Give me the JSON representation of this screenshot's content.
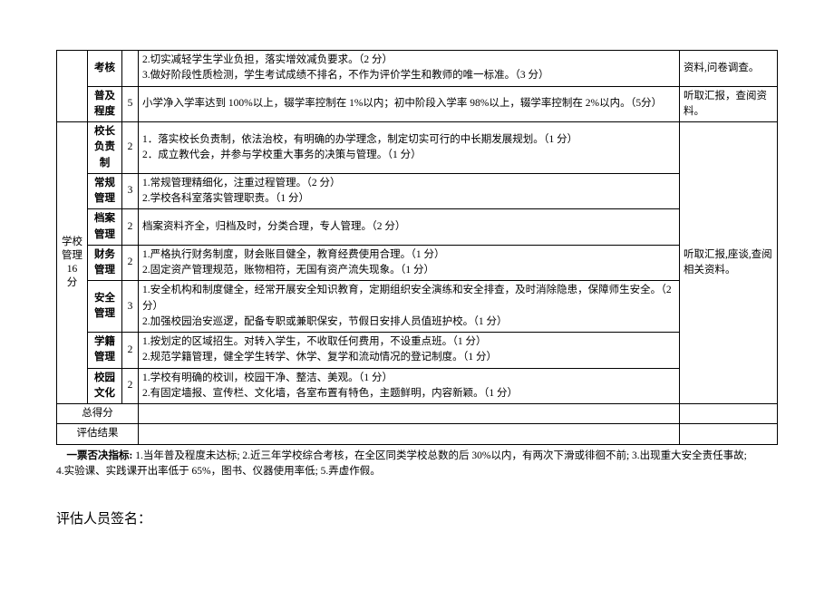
{
  "rows": {
    "kaohe": {
      "sub": "考核",
      "desc": "2.切实减轻学生学业负担，落实增效减负要求。（2 分）\n3.做好阶段性质检测，学生考试成绩不排名，不作为评价学生和教师的唯一标准。（3 分）",
      "note": "资料,问卷调查。"
    },
    "puji": {
      "sub": "普及程度",
      "score": "5",
      "desc": "小学净入学率达到 100%以上，辍学率控制在 1%以内；初中阶段入学率 98%以上，辍学率控制在 2%以内。（5分）",
      "note": "听取汇报，查阅资料。"
    },
    "category": {
      "label": "学校管理16 分"
    },
    "xiaozhang": {
      "sub": "校长负责制",
      "score": "2",
      "desc": "1．落实校长负责制，依法治校，有明确的办学理念，制定切实可行的中长期发展规划。（1 分）\n2．成立教代会，并参与学校重大事务的决策与管理。（1 分）"
    },
    "changgui": {
      "sub": "常规管理",
      "score": "3",
      "desc": "1.常规管理精细化，注重过程管理。（2 分）\n2.学校各科室落实管理职责。（1 分）"
    },
    "dangan": {
      "sub": "档案管理",
      "score": "2",
      "desc": "档案资料齐全，归档及时，分类合理，专人管理。（2 分）"
    },
    "caiwu": {
      "sub": "财务管理",
      "score": "2",
      "desc": "1.严格执行财务制度，财会账目健全，教育经费使用合理。（1 分）\n2.固定资产管理规范，账物相符，无国有资产流失现象。（1 分）"
    },
    "anquan": {
      "sub": "安全管理",
      "score": "3",
      "desc": "1.安全机构和制度健全，经常开展安全知识教育，定期组织安全演练和安全排查，及时消除隐患，保障师生安全。（2 分）\n2.加强校园治安巡逻，配备专职或兼职保安，节假日安排人员值班护校。（1 分）"
    },
    "xueji": {
      "sub": "学籍管理",
      "score": "2",
      "desc": "1.按划定的区域招生。对转入学生，不收取任何费用，不设重点班。（1 分）\n2.规范学籍管理，健全学生转学、休学、复学和流动情况的登记制度。（1 分）"
    },
    "xiaoyuan": {
      "sub": "校园文化",
      "score": "2",
      "desc": "1.学校有明确的校训，校园干净、整洁、美观。（1 分）\n2.有固定墙报、宣传栏、文化墙，各室布置有特色，主题鲜明，内容新颖。（1 分）"
    },
    "big_note": "听取汇报,座谈,查阅相关资料。",
    "zongdefen": "总得分",
    "pinggu": "评估结果"
  },
  "footer": {
    "label": "一票否决指标:",
    "text": " 1.当年普及程度未达标; 2.近三年学校综合考核，在全区同类学校总数的后 30%以内，有两次下滑或徘徊不前; 3.出现重大安全责任事故;\n4.实验课、实践课开出率低于 65%，图书、仪器使用率低; 5.弄虚作假。"
  },
  "signature": "评估人员签名："
}
